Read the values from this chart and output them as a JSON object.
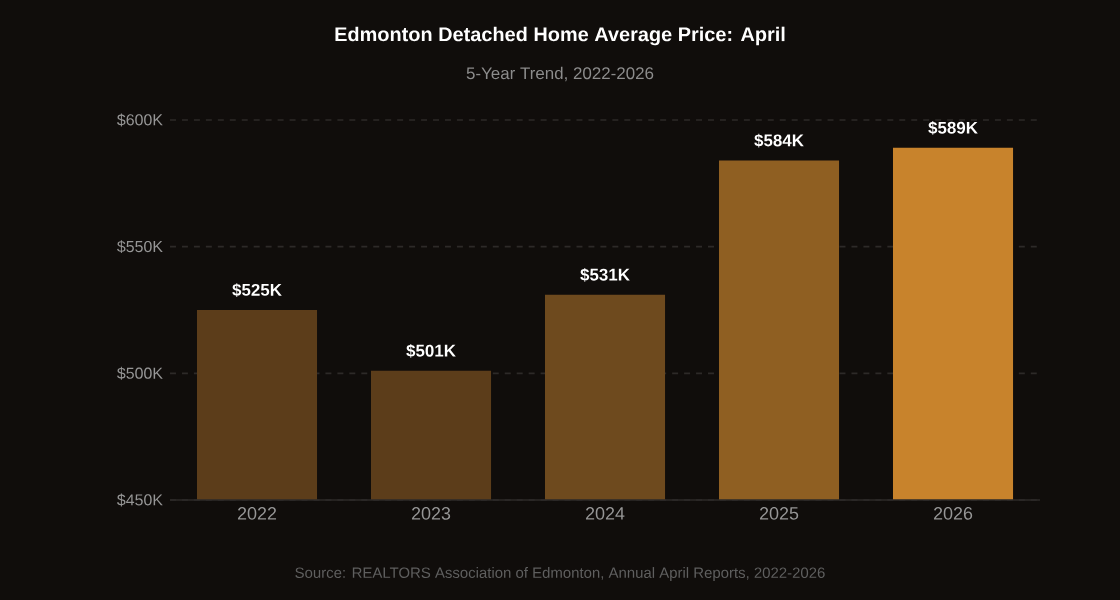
{
  "chart_data": {
    "type": "bar",
    "title": "Edmonton Detached Home Average Price: April",
    "subtitle": "5-Year Trend, 2022-2026",
    "categories": [
      "2022",
      "2023",
      "2024",
      "2025",
      "2026"
    ],
    "values": [
      525,
      501,
      531,
      584,
      589
    ],
    "value_labels": [
      "$525K",
      "$501K",
      "$531K",
      "$584K",
      "$589K"
    ],
    "colors": [
      "#5c3d1a",
      "#5c3d1a",
      "#6e4a1e",
      "#8f5f22",
      "#c8832c"
    ],
    "ylim": [
      450,
      600
    ],
    "yticks": [
      {
        "value": 450,
        "label": "$450K"
      },
      {
        "value": 500,
        "label": "$500K"
      },
      {
        "value": 550,
        "label": "$550K"
      },
      {
        "value": 600,
        "label": "$600K"
      }
    ],
    "grid": "y",
    "annotations": [
      "Source: REALTORS Association of Edmonton, Annual April Reports, 2022-2026"
    ]
  }
}
